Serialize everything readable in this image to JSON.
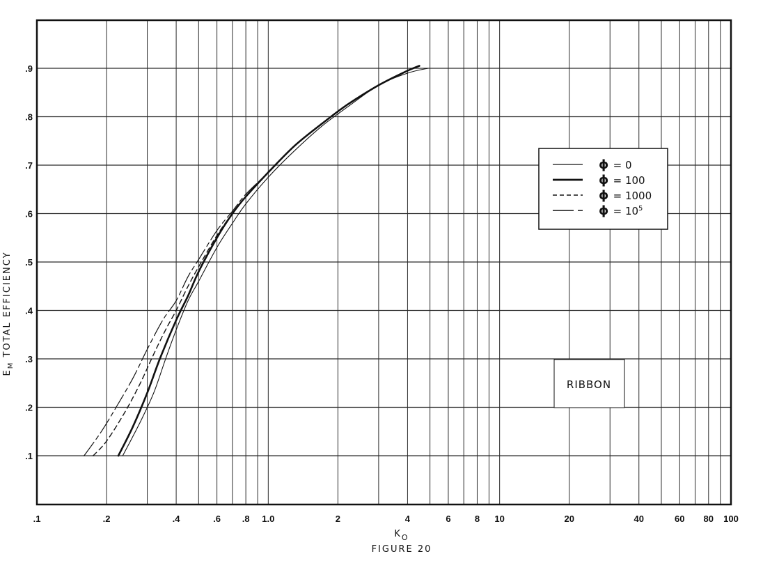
{
  "figure": {
    "caption": "FIGURE 20"
  },
  "chart_data": {
    "type": "line",
    "title": "",
    "caption": "FIGURE 20",
    "annotation": "RIBBON",
    "xlabel": "K",
    "xlabel_subscript": "O",
    "ylabel_main": "E",
    "ylabel_subscript": "M",
    "ylabel_text": "TOTAL EFFICIENCY",
    "xscale": "log",
    "xlim": [
      0.1,
      100
    ],
    "ylim": [
      0,
      1.0
    ],
    "grid": true,
    "legend_position": "upper right (inside plot)",
    "x_ticks": [
      {
        "value": 0.1,
        "label": ".1"
      },
      {
        "value": 0.2,
        "label": ".2"
      },
      {
        "value": 0.4,
        "label": ".4"
      },
      {
        "value": 0.6,
        "label": ".6"
      },
      {
        "value": 0.8,
        "label": ".8"
      },
      {
        "value": 1.0,
        "label": "1.0"
      },
      {
        "value": 2,
        "label": "2"
      },
      {
        "value": 4,
        "label": "4"
      },
      {
        "value": 6,
        "label": "6"
      },
      {
        "value": 8,
        "label": "8"
      },
      {
        "value": 10,
        "label": "10"
      },
      {
        "value": 20,
        "label": "20"
      },
      {
        "value": 40,
        "label": "40"
      },
      {
        "value": 60,
        "label": "60"
      },
      {
        "value": 80,
        "label": "80"
      },
      {
        "value": 100,
        "label": "100"
      }
    ],
    "y_ticks": [
      {
        "value": 0.1,
        "label": ".1"
      },
      {
        "value": 0.2,
        "label": ".2"
      },
      {
        "value": 0.3,
        "label": ".3"
      },
      {
        "value": 0.4,
        "label": ".4"
      },
      {
        "value": 0.5,
        "label": ".5"
      },
      {
        "value": 0.6,
        "label": ".6"
      },
      {
        "value": 0.7,
        "label": ".7"
      },
      {
        "value": 0.8,
        "label": ".8"
      },
      {
        "value": 0.9,
        "label": ".9"
      }
    ],
    "x_gridlines": [
      0.1,
      0.2,
      0.3,
      0.4,
      0.5,
      0.6,
      0.7,
      0.8,
      0.9,
      1,
      2,
      3,
      4,
      5,
      6,
      7,
      8,
      9,
      10,
      20,
      30,
      40,
      50,
      60,
      70,
      80,
      90,
      100
    ],
    "y_gridlines": [
      0.1,
      0.2,
      0.3,
      0.4,
      0.5,
      0.6,
      0.7,
      0.8,
      0.9
    ],
    "series": [
      {
        "name": "φ = 0",
        "legend_label": "= 0",
        "style": "thin-solid",
        "x": [
          0.235,
          0.28,
          0.32,
          0.36,
          0.4,
          0.45,
          0.5,
          0.6,
          0.7,
          0.8,
          1.0,
          1.3,
          1.7,
          2.2,
          3.0,
          4.0,
          4.9
        ],
        "y": [
          0.1,
          0.17,
          0.23,
          0.3,
          0.36,
          0.42,
          0.46,
          0.53,
          0.58,
          0.62,
          0.675,
          0.73,
          0.78,
          0.82,
          0.865,
          0.89,
          0.9
        ]
      },
      {
        "name": "φ = 100",
        "legend_label": "= 100",
        "style": "thick-solid",
        "x": [
          0.225,
          0.26,
          0.3,
          0.34,
          0.4,
          0.45,
          0.5,
          0.6,
          0.7,
          0.8,
          1.0,
          1.3,
          1.7,
          2.2,
          3.0,
          4.0,
          4.5
        ],
        "y": [
          0.1,
          0.16,
          0.23,
          0.3,
          0.38,
          0.43,
          0.48,
          0.55,
          0.6,
          0.635,
          0.685,
          0.74,
          0.785,
          0.825,
          0.865,
          0.895,
          0.905
        ]
      },
      {
        "name": "φ = 1000",
        "legend_label": "= 1000",
        "style": "short-dash",
        "x": [
          0.175,
          0.2,
          0.24,
          0.28,
          0.32,
          0.36,
          0.4,
          0.45,
          0.5,
          0.6,
          0.7,
          0.8,
          1.0,
          1.3,
          1.7,
          2.2,
          3.0,
          4.0,
          4.5
        ],
        "y": [
          0.1,
          0.13,
          0.19,
          0.25,
          0.31,
          0.36,
          0.4,
          0.45,
          0.49,
          0.555,
          0.6,
          0.635,
          0.685,
          0.74,
          0.785,
          0.825,
          0.865,
          0.895,
          0.905
        ]
      },
      {
        "name": "φ = 10^5",
        "legend_label": "= 10",
        "legend_superscript": "5",
        "style": "long-short-dash",
        "x": [
          0.16,
          0.19,
          0.22,
          0.26,
          0.3,
          0.35,
          0.4,
          0.45,
          0.5,
          0.6,
          0.7,
          0.8,
          1.0,
          1.3,
          1.7,
          2.2,
          3.0,
          4.0,
          4.5
        ],
        "y": [
          0.1,
          0.15,
          0.2,
          0.26,
          0.32,
          0.38,
          0.42,
          0.47,
          0.505,
          0.565,
          0.605,
          0.64,
          0.685,
          0.74,
          0.785,
          0.825,
          0.865,
          0.895,
          0.905
        ]
      }
    ]
  },
  "layout_colors": {
    "ink": "#111111",
    "grid": "#2a2a2a",
    "paper": "#ffffff"
  }
}
